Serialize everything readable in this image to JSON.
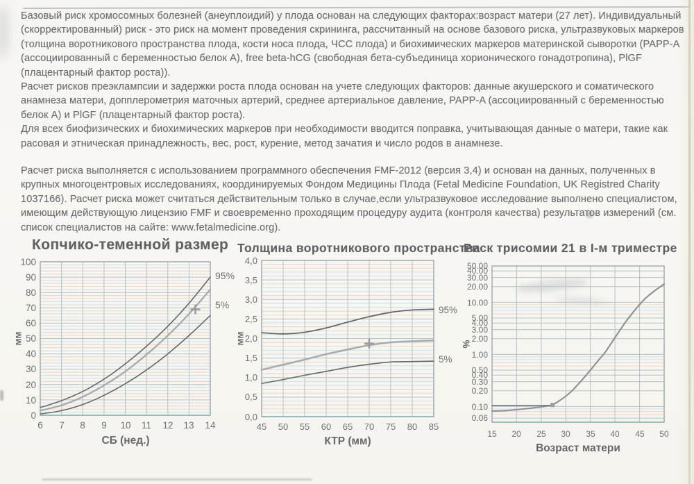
{
  "page": {
    "background": "#f7f6f2",
    "text_color": "#6b6f72",
    "title_color": "#5e6265"
  },
  "document": {
    "paragraphs": [
      "Базовый риск хромосомных болезней (анеуплоидий) у плода основан на следующих факторах:возраст матери (27 лет). Индивидуальный (скорректированный) риск - это риск на момент проведения скрининга, рассчитанный на основе базового риска, ультразвуковых маркеров (толщина воротникового пространства плода, кости носа плода, ЧСС плода) и биохимических маркеров материнской сыворотки (PAPP-A (ассоциированный с беременностью белок A), free beta-hCG (свободная бета-субъединица хорионического гонадотропина), PlGF (плацентарный фактор роста)).",
      "Расчет рисков преэклампсии и задержки роста плода основан на учете следующих факторов: данные акушерского и соматического анамнеза матери, допплерометрия маточных артерий, среднее артериальное давление, PAPP-A (ассоциированный с беременностью белок A) и PlGF (плацентарный фактор роста).",
      "Для всех биофизических и биохимических маркеров при необходимости вводится поправка, учитывающая данные о матери, такие как расовая и этническая принадлежность, вес, рост, курение, метод зачатия и число родов в анамнезе.",
      "Расчет риска выполняется с использованием программного обеспечения FMF-2012 (версия 3,4) и основан на данных, полученных в крупных многоцентровых исследованиях, координируемых Фондом Медицины Плода (Fetal Medicine Foundation, UK Registred Charity 1037166). Расчет риска может считаться действительным только в случае,если ультразвуковое исследование выполнено специалистом, имеющим действующую лицензию FMF и своевременно проходящим процедуру аудита (контроля качества) результатов измерений (см. список специалистов на сайте: www.fetalmedicine.org)."
    ]
  },
  "chart_style": {
    "minor_colors": [
      "#aed3dd",
      "#e7c9a8",
      "#ddb9b9",
      "#c2cfe0"
    ],
    "major_color": "#b7c2c6",
    "border_color": "#8e99a2",
    "baseline_color": "#7fb2b0",
    "marker_color": "#999da0",
    "tick_color": "#6d7174"
  },
  "chart_data": [
    {
      "type": "line",
      "title": "Копчико-теменной размер",
      "xlabel": "СБ (нед.)",
      "ylabel": "мм",
      "xlim": [
        6,
        14
      ],
      "ylim": [
        0,
        100
      ],
      "yscale": "linear",
      "yminor_step": 2,
      "grid": true,
      "xticks": [
        {
          "v": 6,
          "label": "6"
        },
        {
          "v": 7,
          "label": "7"
        },
        {
          "v": 8,
          "label": "8"
        },
        {
          "v": 9,
          "label": "9"
        },
        {
          "v": 10,
          "label": "10"
        },
        {
          "v": 11,
          "label": "11"
        },
        {
          "v": 12,
          "label": "12"
        },
        {
          "v": 13,
          "label": "13"
        },
        {
          "v": 14,
          "label": "14"
        }
      ],
      "yticks": [
        {
          "v": 0,
          "label": "0"
        },
        {
          "v": 10,
          "label": "10"
        },
        {
          "v": 20,
          "label": "20"
        },
        {
          "v": 30,
          "label": "30"
        },
        {
          "v": 40,
          "label": "40"
        },
        {
          "v": 50,
          "label": "50"
        },
        {
          "v": 60,
          "label": "60"
        },
        {
          "v": 70,
          "label": "70"
        },
        {
          "v": 80,
          "label": "80"
        },
        {
          "v": 90,
          "label": "90"
        },
        {
          "v": 100,
          "label": "100"
        }
      ],
      "series": [
        {
          "name": "95th percentile",
          "color": "#63686b",
          "width": 1.6,
          "points": [
            [
              6,
              5
            ],
            [
              7,
              9.5
            ],
            [
              8,
              15.5
            ],
            [
              9,
              23.5
            ],
            [
              10,
              33.5
            ],
            [
              11,
              45
            ],
            [
              12,
              58
            ],
            [
              13,
              73
            ],
            [
              14,
              90
            ]
          ]
        },
        {
          "name": "median",
          "color": "#a8acae",
          "width": 2.4,
          "points": [
            [
              6,
              3
            ],
            [
              7,
              6.5
            ],
            [
              8,
              12
            ],
            [
              9,
              19.5
            ],
            [
              10,
              28.5
            ],
            [
              11,
              39.5
            ],
            [
              12,
              52
            ],
            [
              13,
              66
            ],
            [
              14,
              82
            ]
          ]
        },
        {
          "name": "5th percentile",
          "color": "#63686b",
          "width": 1.6,
          "points": [
            [
              6,
              0.8
            ],
            [
              7,
              3
            ],
            [
              8,
              7
            ],
            [
              9,
              13
            ],
            [
              10,
              20.5
            ],
            [
              11,
              29.5
            ],
            [
              12,
              40
            ],
            [
              13,
              52
            ],
            [
              14,
              65
            ]
          ]
        }
      ],
      "right_labels": [
        {
          "text": "95%",
          "v": 91
        },
        {
          "text": "5%",
          "v": 72
        }
      ],
      "markers": [
        {
          "type": "plus",
          "x": 13.3,
          "y": 69,
          "name": "measurement-marker"
        }
      ]
    },
    {
      "type": "line",
      "title": "Толщина воротникового пространства",
      "xlabel": "КТР (мм)",
      "ylabel": "мм",
      "xlim": [
        45,
        85
      ],
      "ylim": [
        0,
        4
      ],
      "yscale": "linear",
      "yminor_step": 0.1,
      "grid": true,
      "xticks": [
        {
          "v": 45,
          "label": "45"
        },
        {
          "v": 50,
          "label": "50"
        },
        {
          "v": 55,
          "label": "55"
        },
        {
          "v": 60,
          "label": "60"
        },
        {
          "v": 65,
          "label": "65"
        },
        {
          "v": 70,
          "label": "70"
        },
        {
          "v": 75,
          "label": "75"
        },
        {
          "v": 80,
          "label": "80"
        },
        {
          "v": 85,
          "label": "85"
        }
      ],
      "yticks": [
        {
          "v": 0,
          "label": "0,0"
        },
        {
          "v": 0.5,
          "label": "0,5"
        },
        {
          "v": 1,
          "label": "1,0"
        },
        {
          "v": 1.5,
          "label": "1,5"
        },
        {
          "v": 2,
          "label": "2,0"
        },
        {
          "v": 2.5,
          "label": "2,5"
        },
        {
          "v": 3,
          "label": "3,0"
        },
        {
          "v": 3.5,
          "label": "3,5"
        },
        {
          "v": 4,
          "label": "4,0"
        }
      ],
      "series": [
        {
          "name": "95th percentile",
          "color": "#63686b",
          "width": 1.8,
          "points": [
            [
              45,
              2.15
            ],
            [
              50,
              2.12
            ],
            [
              55,
              2.16
            ],
            [
              60,
              2.27
            ],
            [
              65,
              2.42
            ],
            [
              70,
              2.56
            ],
            [
              75,
              2.67
            ],
            [
              80,
              2.73
            ],
            [
              85,
              2.75
            ]
          ]
        },
        {
          "name": "median",
          "color": "#a8acae",
          "width": 2.6,
          "points": [
            [
              45,
              1.2
            ],
            [
              50,
              1.33
            ],
            [
              55,
              1.46
            ],
            [
              60,
              1.6
            ],
            [
              65,
              1.72
            ],
            [
              70,
              1.83
            ],
            [
              75,
              1.9
            ],
            [
              80,
              1.93
            ],
            [
              85,
              1.95
            ]
          ]
        },
        {
          "name": "5th percentile",
          "color": "#63686b",
          "width": 1.6,
          "points": [
            [
              45,
              0.85
            ],
            [
              50,
              0.95
            ],
            [
              55,
              1.06
            ],
            [
              60,
              1.16
            ],
            [
              65,
              1.26
            ],
            [
              70,
              1.34
            ],
            [
              75,
              1.4
            ],
            [
              80,
              1.41
            ],
            [
              85,
              1.42
            ]
          ]
        }
      ],
      "right_labels": [
        {
          "text": "95%",
          "v": 2.74
        },
        {
          "text": "5%",
          "v": 1.47
        }
      ],
      "markers": [
        {
          "type": "plus",
          "x": 70,
          "y": 1.87,
          "name": "measurement-marker"
        }
      ]
    },
    {
      "type": "line",
      "title": "Риск трисомии 21 в I-м триместре",
      "xlabel": "Возраст матери",
      "ylabel": "%",
      "xlim": [
        15,
        50
      ],
      "ylim": [
        0.05,
        50
      ],
      "yscale": "log",
      "grid": true,
      "xticks": [
        {
          "v": 15,
          "label": "15"
        },
        {
          "v": 20,
          "label": "20"
        },
        {
          "v": 25,
          "label": "25"
        },
        {
          "v": 30,
          "label": "30"
        },
        {
          "v": 35,
          "label": "35"
        },
        {
          "v": 40,
          "label": "40"
        },
        {
          "v": 45,
          "label": "45"
        },
        {
          "v": 50,
          "label": "50"
        }
      ],
      "yticks": [
        {
          "v": 50,
          "label": "50.00"
        },
        {
          "v": 40,
          "label": "40.00"
        },
        {
          "v": 30,
          "label": "30.00"
        },
        {
          "v": 20,
          "label": "20.00"
        },
        {
          "v": 10,
          "label": "10.00"
        },
        {
          "v": 5,
          "label": "5.00"
        },
        {
          "v": 4,
          "label": "4.00"
        },
        {
          "v": 3,
          "label": "3.00"
        },
        {
          "v": 2,
          "label": "2.00"
        },
        {
          "v": 1,
          "label": "1.00"
        },
        {
          "v": 0.5,
          "label": "0.50"
        },
        {
          "v": 0.4,
          "label": "0.40"
        },
        {
          "v": 0.3,
          "label": "0.30"
        },
        {
          "v": 0.2,
          "label": "0.20"
        },
        {
          "v": 0.1,
          "label": "0.10"
        },
        {
          "v": 0.06,
          "label": "0.06"
        }
      ],
      "series": [
        {
          "name": "age-related risk",
          "color": "#8f9496",
          "width": 2.2,
          "points": [
            [
              15,
              0.082
            ],
            [
              18,
              0.084
            ],
            [
              21,
              0.089
            ],
            [
              24,
              0.096
            ],
            [
              27,
              0.106
            ],
            [
              29,
              0.135
            ],
            [
              31,
              0.19
            ],
            [
              33,
              0.3
            ],
            [
              35,
              0.5
            ],
            [
              37,
              0.85
            ],
            [
              38,
              1.1
            ],
            [
              40,
              2.1
            ],
            [
              42,
              4.0
            ],
            [
              44,
              7.0
            ],
            [
              46,
              11.5
            ],
            [
              48,
              16.5
            ],
            [
              50,
              22.5
            ]
          ]
        },
        {
          "name": "patient base risk line",
          "color": "#74797c",
          "width": 1.6,
          "points": [
            [
              15,
              0.105
            ],
            [
              27.6,
              0.105
            ]
          ]
        }
      ],
      "right_labels": [],
      "markers": [
        {
          "type": "square",
          "x": 27.3,
          "y": 0.107,
          "name": "patient-age-risk-marker"
        }
      ]
    }
  ]
}
